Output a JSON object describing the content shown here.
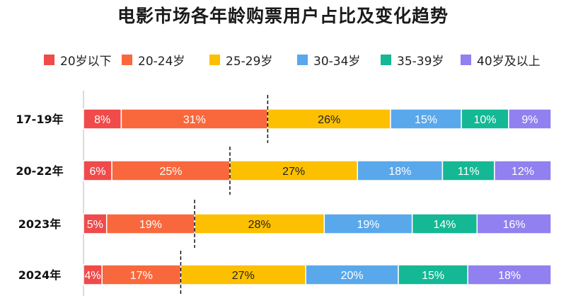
{
  "chart_data": {
    "type": "bar",
    "stacked": true,
    "orientation": "horizontal",
    "title": "电影市场各年龄购票用户占比及变化趋势",
    "categories": [
      "17-19年",
      "20-22年",
      "2023年",
      "2024年"
    ],
    "series": [
      {
        "name": "20岁以下",
        "color": "#f04a4a",
        "values": [
          8,
          6,
          5,
          4
        ],
        "labels": [
          "8%",
          "6%",
          "5%",
          "4%"
        ]
      },
      {
        "name": "20-24岁",
        "color": "#f9683c",
        "values": [
          31,
          25,
          19,
          17
        ],
        "labels": [
          "31%",
          "25%",
          "19%",
          "17%"
        ]
      },
      {
        "name": "25-29岁",
        "color": "#fcc000",
        "values": [
          26,
          27,
          28,
          27
        ],
        "labels": [
          "26%",
          "27%",
          "28%",
          "27%"
        ]
      },
      {
        "name": "30-34岁",
        "color": "#59a8ec",
        "values": [
          15,
          18,
          19,
          20
        ],
        "labels": [
          "15%",
          "18%",
          "19%",
          "20%"
        ]
      },
      {
        "name": "35-39岁",
        "color": "#14b894",
        "values": [
          10,
          11,
          14,
          15
        ],
        "labels": [
          "10%",
          "11%",
          "14%",
          "15%"
        ]
      },
      {
        "name": "40岁及以上",
        "color": "#9080f0",
        "values": [
          9,
          12,
          16,
          18
        ],
        "labels": [
          "9%",
          "12%",
          "16%",
          "18%"
        ]
      }
    ],
    "legend_position": "top",
    "reference_marker": "dashed line at the boundary between 20-24岁 and 25-29岁",
    "xlim": [
      0,
      100
    ]
  }
}
